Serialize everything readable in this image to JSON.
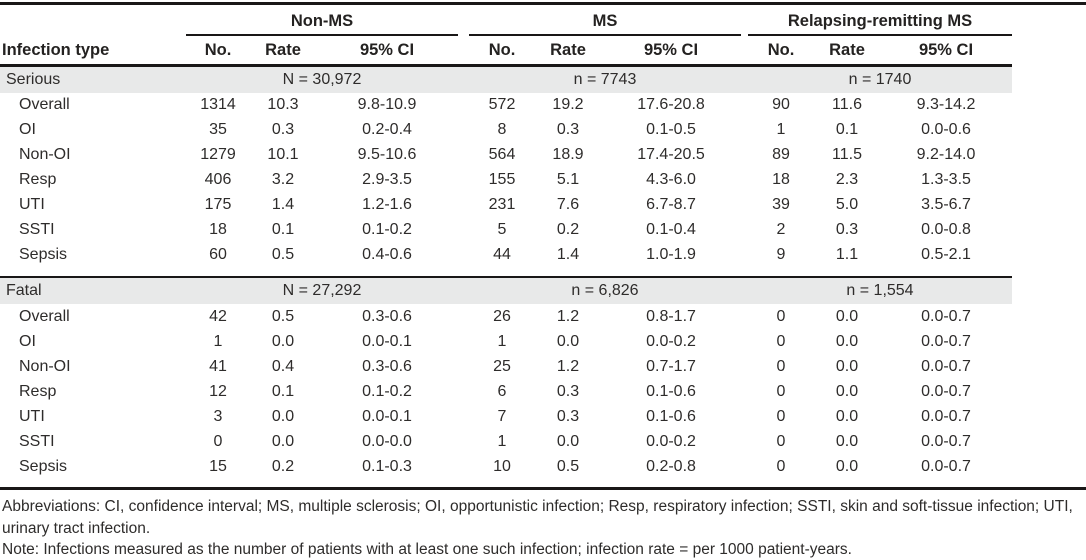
{
  "header": {
    "row_label": "Infection type",
    "groups": [
      {
        "name": "Non-MS"
      },
      {
        "name": "MS"
      },
      {
        "name": "Relapsing-remitting MS"
      }
    ],
    "cols": [
      "No.",
      "Rate",
      "95% CI"
    ]
  },
  "sections": [
    {
      "label": "Serious",
      "ns": [
        "N = 30,972",
        "n = 7743",
        "n = 1740"
      ],
      "rows": [
        {
          "label": "Overall",
          "cells": [
            "1314",
            "10.3",
            "9.8-10.9",
            "572",
            "19.2",
            "17.6-20.8",
            "90",
            "11.6",
            "9.3-14.2"
          ]
        },
        {
          "label": "OI",
          "cells": [
            "35",
            "0.3",
            "0.2-0.4",
            "8",
            "0.3",
            "0.1-0.5",
            "1",
            "0.1",
            "0.0-0.6"
          ]
        },
        {
          "label": "Non-OI",
          "cells": [
            "1279",
            "10.1",
            "9.5-10.6",
            "564",
            "18.9",
            "17.4-20.5",
            "89",
            "11.5",
            "9.2-14.0"
          ]
        },
        {
          "label": "Resp",
          "cells": [
            "406",
            "3.2",
            "2.9-3.5",
            "155",
            "5.1",
            "4.3-6.0",
            "18",
            "2.3",
            "1.3-3.5"
          ]
        },
        {
          "label": "UTI",
          "cells": [
            "175",
            "1.4",
            "1.2-1.6",
            "231",
            "7.6",
            "6.7-8.7",
            "39",
            "5.0",
            "3.5-6.7"
          ]
        },
        {
          "label": "SSTI",
          "cells": [
            "18",
            "0.1",
            "0.1-0.2",
            "5",
            "0.2",
            "0.1-0.4",
            "2",
            "0.3",
            "0.0-0.8"
          ]
        },
        {
          "label": "Sepsis",
          "cells": [
            "60",
            "0.5",
            "0.4-0.6",
            "44",
            "1.4",
            "1.0-1.9",
            "9",
            "1.1",
            "0.5-2.1"
          ]
        }
      ]
    },
    {
      "label": "Fatal",
      "ns": [
        "N = 27,292",
        "n = 6,826",
        "n = 1,554"
      ],
      "rows": [
        {
          "label": "Overall",
          "cells": [
            "42",
            "0.5",
            "0.3-0.6",
            "26",
            "1.2",
            "0.8-1.7",
            "0",
            "0.0",
            "0.0-0.7"
          ]
        },
        {
          "label": "OI",
          "cells": [
            "1",
            "0.0",
            "0.0-0.1",
            "1",
            "0.0",
            "0.0-0.2",
            "0",
            "0.0",
            "0.0-0.7"
          ]
        },
        {
          "label": "Non-OI",
          "cells": [
            "41",
            "0.4",
            "0.3-0.6",
            "25",
            "1.2",
            "0.7-1.7",
            "0",
            "0.0",
            "0.0-0.7"
          ]
        },
        {
          "label": "Resp",
          "cells": [
            "12",
            "0.1",
            "0.1-0.2",
            "6",
            "0.3",
            "0.1-0.6",
            "0",
            "0.0",
            "0.0-0.7"
          ]
        },
        {
          "label": "UTI",
          "cells": [
            "3",
            "0.0",
            "0.0-0.1",
            "7",
            "0.3",
            "0.1-0.6",
            "0",
            "0.0",
            "0.0-0.7"
          ]
        },
        {
          "label": "SSTI",
          "cells": [
            "0",
            "0.0",
            "0.0-0.0",
            "1",
            "0.0",
            "0.0-0.2",
            "0",
            "0.0",
            "0.0-0.7"
          ]
        },
        {
          "label": "Sepsis",
          "cells": [
            "15",
            "0.2",
            "0.1-0.3",
            "10",
            "0.5",
            "0.2-0.8",
            "0",
            "0.0",
            "0.0-0.7"
          ]
        }
      ]
    }
  ],
  "footer": {
    "abbreviations": "Abbreviations: CI, confidence interval; MS, multiple sclerosis; OI, opportunistic infection; Resp, respiratory infection; SSTI, skin and soft-tissue infection; UTI, urinary tract infection.",
    "note": "Note: Infections measured as the number of patients with at least one such infection; infection rate = per 1000 patient-years."
  }
}
